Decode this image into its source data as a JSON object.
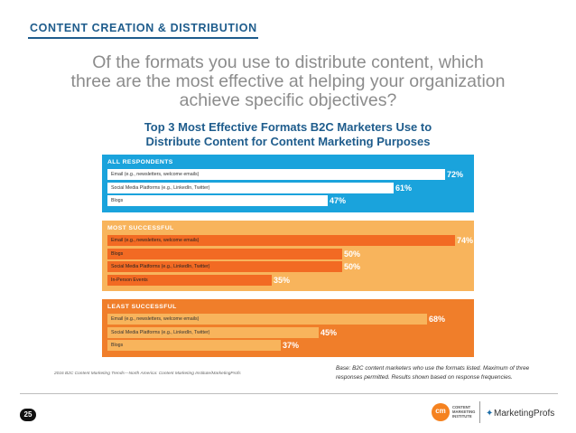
{
  "header": {
    "section_title": "CONTENT CREATION & DISTRIBUTION",
    "question_lines": [
      "Of the formats you use to distribute content, which",
      "three are the most effective at helping your organization",
      "achieve specific objectives?"
    ]
  },
  "chart_data": {
    "type": "bar",
    "orientation": "horizontal",
    "title_lines": [
      "Top 3 Most Effective Formats B2C Marketers Use to",
      "Distribute Content for Content Marketing Purposes"
    ],
    "xlim": [
      0,
      100
    ],
    "value_suffix": "%",
    "groups": [
      {
        "label": "ALL RESPONDENTS",
        "color": "#1aa3dc",
        "bars": [
          {
            "category": "Email (e.g., newsletters, welcome emails)",
            "value": 72,
            "label": "72%"
          },
          {
            "category": "Social Media Platforms (e.g., LinkedIn, Twitter)",
            "value": 61,
            "label": "61%"
          },
          {
            "category": "Blogs",
            "value": 47,
            "label": "47%"
          }
        ]
      },
      {
        "label": "MOST SUCCESSFUL",
        "color": "#f8b45c",
        "bar_color": "#f26a23",
        "bars": [
          {
            "category": "Email (e.g., newsletters, welcome emails)",
            "value": 74,
            "label": "74%"
          },
          {
            "category": "Blogs",
            "value": 50,
            "label": "50%"
          },
          {
            "category": "Social Media Platforms (e.g., LinkedIn, Twitter)",
            "value": 50,
            "label": "50%"
          },
          {
            "category": "In-Person Events",
            "value": 35,
            "label": "35%"
          }
        ]
      },
      {
        "label": "LEAST SUCCESSFUL",
        "color": "#f07e2a",
        "bar_color": "#f8b45c",
        "bars": [
          {
            "category": "Email (e.g., newsletters, welcome emails)",
            "value": 68,
            "label": "68%"
          },
          {
            "category": "Social Media Platforms (e.g., LinkedIn, Twitter)",
            "value": 45,
            "label": "45%"
          },
          {
            "category": "Blogs",
            "value": 37,
            "label": "37%"
          }
        ]
      }
    ]
  },
  "footer": {
    "source": "2016 B2C Content Marketing Trends—North America: Content Marketing Institute/MarketingProfs",
    "base_note_lines": [
      "Base: B2C content marketers who use the formats listed. Maximum of three",
      "responses permitted. Results shown based on response frequencies."
    ],
    "page_number": "25",
    "cmi_logo_letters": "cm",
    "cmi_logo_lines": [
      "CONTENT",
      "MARKETING",
      "INSTITUTE"
    ],
    "mp_logo_text": "MarketingProfs",
    "mp_icon": "bird-icon"
  }
}
